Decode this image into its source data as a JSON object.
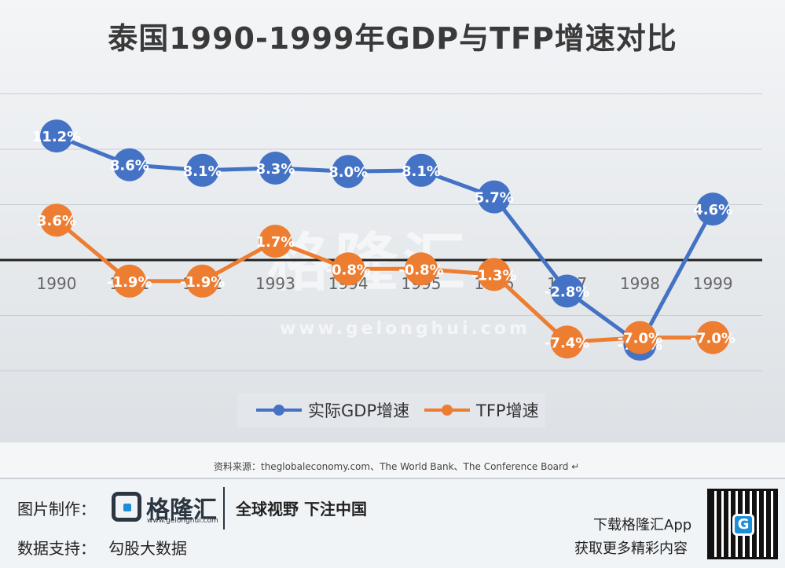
{
  "chart_data": {
    "type": "line",
    "title": "泰国1990-1999年GDP与TFP增速对比",
    "categories": [
      "1990",
      "1991",
      "1992",
      "1993",
      "1994",
      "1995",
      "1996",
      "1997",
      "1998",
      "1999"
    ],
    "series": [
      {
        "name": "实际GDP增速",
        "color": "#4472c4",
        "values": [
          11.2,
          8.6,
          8.1,
          8.3,
          8.0,
          8.1,
          5.7,
          -2.8,
          -7.6,
          4.6
        ],
        "labels": [
          "11.2%",
          "8.6%",
          "8.1%",
          "8.3%",
          "8.0%",
          "8.1%",
          "5.7%",
          "-2.8%",
          "-7.6%",
          "4.6%"
        ]
      },
      {
        "name": "TFP增速",
        "color": "#ed7d31",
        "values": [
          3.6,
          -1.9,
          -1.9,
          1.7,
          -0.8,
          -0.8,
          -1.3,
          -7.4,
          -7.0,
          -7.0
        ],
        "labels": [
          "3.6%",
          "-1.9%",
          "-1.9%",
          "1.7%",
          "-0.8%",
          "-0.8%",
          "-1.3%",
          "-7.4%",
          "-7.0%",
          "-7.0%"
        ]
      }
    ],
    "grid": true,
    "legend": "bottom"
  },
  "watermark": {
    "brand": "格隆汇",
    "url": "www.gelonghui.com"
  },
  "source": "资料来源：theglobaleconomy.com、The World Bank、The Conference Board ↵",
  "footer": {
    "made_by_label": "图片制作：",
    "brand_name": "格隆汇",
    "brand_url": "www.gelonghui.com",
    "slogan": "全球视野 下注中国",
    "data_support_label": "数据支持：",
    "data_support_value": "勾股大数据",
    "download_text": "下载格隆汇App",
    "more_text": "获取更多精彩内容",
    "qr_icon": "qr-code-icon"
  }
}
